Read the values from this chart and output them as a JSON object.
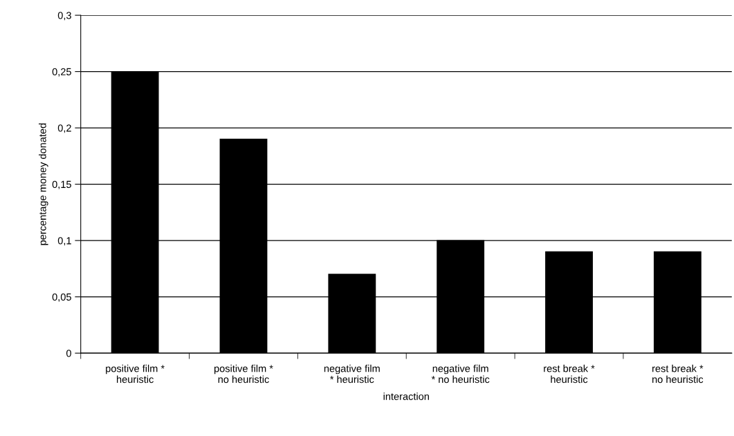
{
  "chart_data": {
    "type": "bar",
    "xlabel": "interaction",
    "ylabel": "percentage money donated",
    "categories": [
      "positive film *\nheuristic",
      "positive film *\nno heuristic",
      "negative film\n* heuristic",
      "negative film\n* no heuristic",
      "rest break *\nheuristic",
      "rest break *\nno heuristic"
    ],
    "values": [
      0.25,
      0.19,
      0.07,
      0.1,
      0.09,
      0.09
    ],
    "color": "#000000",
    "ylim": [
      0,
      0.3
    ],
    "yticks": [
      0,
      {
        "value": 0.05,
        "label": "0,05"
      },
      {
        "value": 0.1,
        "label": "0,1"
      },
      {
        "value": 0.15,
        "label": "0,15"
      },
      {
        "value": 0.2,
        "label": "0,2"
      },
      {
        "value": 0.25,
        "label": "0,25"
      },
      {
        "value": 0.3,
        "label": "0,3"
      }
    ],
    "grid": "y",
    "legend": false
  }
}
